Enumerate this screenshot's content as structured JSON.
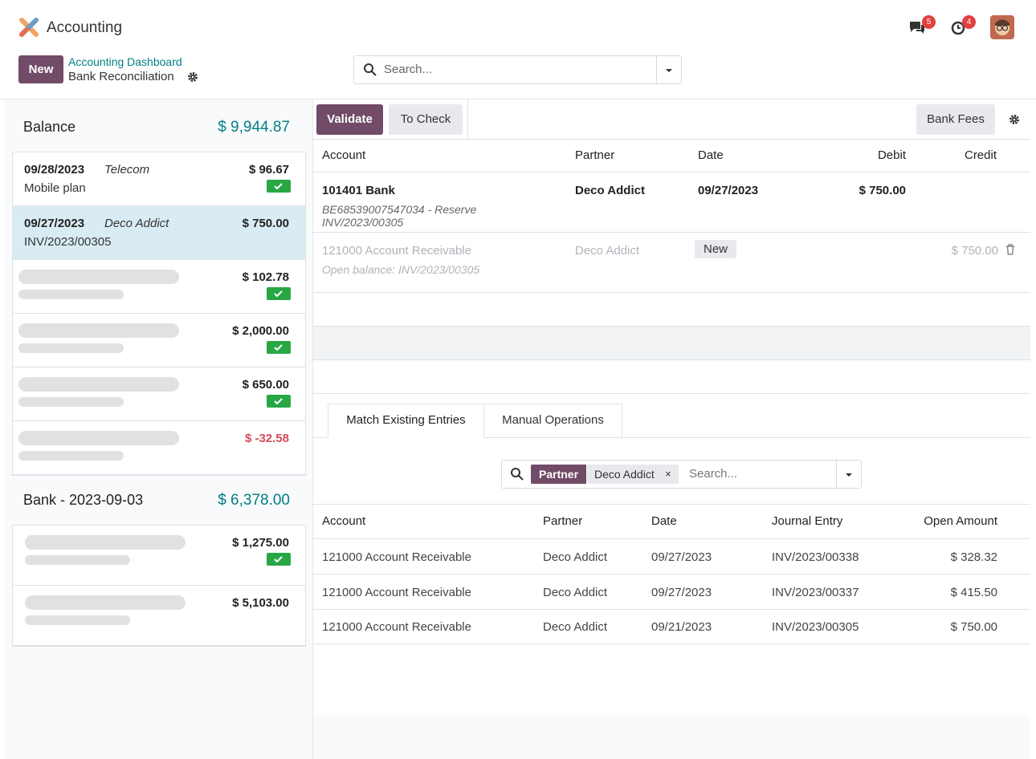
{
  "top_bar": {
    "app_name": "Accounting",
    "message_count": "5",
    "activity_count": "4"
  },
  "control_panel": {
    "new_button": "New",
    "breadcrumb": [
      "Accounting Dashboard",
      "Bank Reconciliation"
    ],
    "search_placeholder": "Search..."
  },
  "statements": [
    {
      "title": "Balance",
      "amount": "$ 9,944.87",
      "lines": [
        {
          "date": "09/28/2023",
          "partner": "Telecom",
          "label": "Mobile plan",
          "amount": "$ 96.67",
          "checked": true
        },
        {
          "date": "09/27/2023",
          "partner": "Deco Addict",
          "label": "INV/2023/00305",
          "amount": "$ 750.00",
          "checked": false,
          "selected": true
        },
        {
          "amount": "$ 102.78",
          "checked": true
        },
        {
          "amount": "$ 2,000.00",
          "checked": true
        },
        {
          "amount": "$ 650.00",
          "checked": true
        },
        {
          "amount": "$ -32.58",
          "checked": false
        }
      ]
    },
    {
      "title": "Bank - 2023-09-03",
      "amount": "$ 6,378.00",
      "lines": [
        {
          "amount": "$ 1,275.00",
          "checked": true
        },
        {
          "amount": "$ 5,103.00",
          "checked": false
        }
      ]
    }
  ],
  "reconcile": {
    "buttons": [
      "Validate",
      "To Check",
      "Bank Fees"
    ],
    "columns": [
      "Account",
      "Partner",
      "Date",
      "Debit",
      "Credit"
    ],
    "lines": [
      {
        "account": "101401 Bank",
        "label": "BE68539007547034 - Reserve INV/2023/00305",
        "partner": "Deco Addict",
        "date": "09/27/2023",
        "debit": "$ 750.00"
      },
      {
        "account": "121000 Account Receivable",
        "label": "Open balance: INV/2023/00305",
        "partner": "Deco Addict",
        "date_badge": "New",
        "credit": "$ 750.00"
      }
    ]
  },
  "tabs": [
    "Match Existing Entries",
    "Manual Operations"
  ],
  "filter": {
    "facet_label": "Partner",
    "facet_value": "Deco Addict",
    "placeholder": "Search..."
  },
  "entries": {
    "columns": [
      "Account",
      "Partner",
      "Date",
      "Journal Entry",
      "Open Amount"
    ],
    "rows": [
      [
        "121000 Account Receivable",
        "Deco Addict",
        "09/27/2023",
        "INV/2023/00338",
        "$ 328.32"
      ],
      [
        "121000 Account Receivable",
        "Deco Addict",
        "09/27/2023",
        "INV/2023/00337",
        "$ 415.50"
      ],
      [
        "121000 Account Receivable",
        "Deco Addict",
        "09/21/2023",
        "INV/2023/00305",
        "$ 750.00"
      ]
    ]
  }
}
